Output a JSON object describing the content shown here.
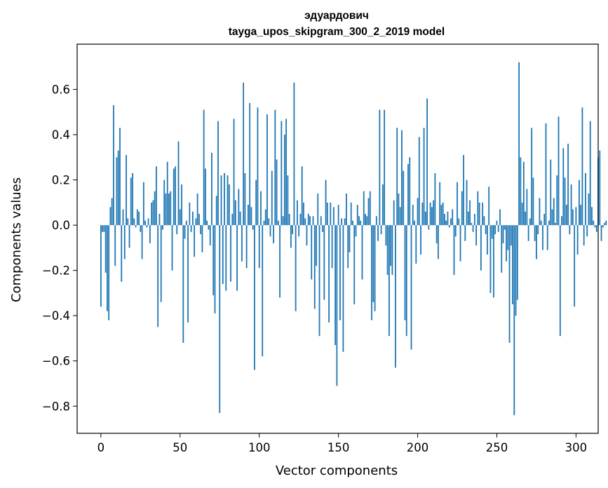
{
  "chart_data": {
    "type": "bar",
    "title_line1": "эдуардович",
    "title_line2": "tayga_upos_skipgram_300_2_2019 model",
    "xlabel": "Vector components",
    "ylabel": "Components values",
    "xlim": [
      -15,
      314
    ],
    "ylim": [
      -0.92,
      0.8
    ],
    "xticks": [
      0,
      50,
      100,
      150,
      200,
      250,
      300
    ],
    "xtick_labels": [
      "0",
      "50",
      "100",
      "150",
      "200",
      "250",
      "300"
    ],
    "yticks": [
      -0.8,
      -0.6,
      -0.4,
      -0.2,
      0.0,
      0.2,
      0.4,
      0.6
    ],
    "ytick_labels": [
      "−0.8",
      "−0.6",
      "−0.4",
      "−0.2",
      "0.0",
      "0.2",
      "0.4",
      "0.6"
    ],
    "bar_color": "#1f77b4",
    "series": [
      {
        "name": "эдуардович",
        "values": [
          -0.36,
          -0.03,
          -0.03,
          -0.21,
          -0.38,
          -0.42,
          0.08,
          0.12,
          0.53,
          -0.18,
          0.3,
          0.33,
          0.43,
          -0.25,
          0.07,
          -0.15,
          0.31,
          0.03,
          -0.1,
          0.21,
          0.23,
          0.03,
          -0.01,
          0.07,
          0.06,
          -0.03,
          -0.15,
          0.19,
          0.02,
          -0.01,
          0.03,
          -0.08,
          0.1,
          0.11,
          0.15,
          0.26,
          -0.45,
          0.05,
          -0.34,
          -0.02,
          0.2,
          0.14,
          0.28,
          0.14,
          0.15,
          -0.2,
          0.25,
          0.26,
          -0.04,
          0.37,
          0.07,
          0.18,
          -0.52,
          -0.06,
          0.02,
          -0.43,
          0.1,
          -0.03,
          0.06,
          -0.14,
          0.03,
          0.14,
          0.05,
          -0.04,
          -0.12,
          0.51,
          0.25,
          0.02,
          -0.02,
          -0.09,
          0.32,
          -0.31,
          -0.39,
          0.13,
          0.46,
          -0.83,
          0.22,
          -0.26,
          0.23,
          -0.29,
          0.22,
          0.18,
          -0.25,
          0.05,
          0.47,
          0.11,
          -0.29,
          0.16,
          0.06,
          -0.16,
          0.63,
          0.23,
          -0.19,
          0.09,
          0.54,
          0.08,
          -0.02,
          -0.64,
          0.2,
          0.52,
          -0.19,
          0.15,
          -0.58,
          0.02,
          0.07,
          0.49,
          0.03,
          -0.05,
          0.24,
          -0.08,
          0.51,
          0.29,
          0.02,
          -0.32,
          0.46,
          0.04,
          0.4,
          0.47,
          0.22,
          0.05,
          -0.1,
          -0.04,
          0.63,
          -0.38,
          0.11,
          -0.05,
          0.05,
          0.26,
          0.1,
          0.03,
          -0.09,
          0.05,
          0.04,
          -0.24,
          0.04,
          -0.37,
          -0.18,
          0.14,
          -0.49,
          0.04,
          -0.03,
          -0.33,
          0.2,
          0.1,
          -0.43,
          0.1,
          -0.19,
          0.08,
          -0.53,
          -0.71,
          0.09,
          -0.42,
          0.03,
          -0.56,
          0.03,
          0.14,
          -0.19,
          -0.12,
          0.1,
          0.02,
          -0.35,
          -0.05,
          0.09,
          0.04,
          0.02,
          -0.24,
          0.15,
          0.05,
          0.04,
          0.12,
          0.15,
          -0.42,
          -0.34,
          -0.38,
          0.04,
          -0.07,
          0.51,
          -0.04,
          0.18,
          0.51,
          -0.09,
          -0.22,
          -0.49,
          -0.18,
          -0.22,
          0.11,
          -0.63,
          0.43,
          0.14,
          0.08,
          0.42,
          0.24,
          -0.42,
          -0.49,
          0.27,
          0.3,
          -0.55,
          0.09,
          0.02,
          -0.17
        ]
      }
    ],
    "extra_values": [
      0.12,
      0.39,
      -0.13,
      0.1,
      0.43,
      0.06,
      0.56,
      -0.02,
      0.1,
      0.08,
      0.11,
      0.23,
      -0.08,
      -0.15,
      0.19,
      0.09,
      0.1,
      0.05,
      0.02,
      0.06,
      -0.01,
      0.03,
      0.07,
      -0.22,
      -0.05,
      0.19,
      0.03,
      -0.16,
      0.15,
      0.31,
      -0.07,
      0.2,
      0.06,
      0.11,
      0.01,
      -0.03,
      0.05,
      -0.09,
      0.15,
      0.1,
      -0.2,
      0.1,
      0.04,
      -0.04,
      -0.13,
      0.17,
      -0.3,
      -0.06,
      -0.32,
      -0.04,
      0.02,
      -0.03,
      0.07,
      -0.21,
      -0.08,
      -0.02,
      -0.16,
      -0.11,
      -0.52,
      -0.09,
      -0.35,
      -0.84,
      -0.4,
      -0.33,
      0.72,
      0.3,
      0.1,
      0.28,
      0.06,
      0.16,
      -0.07,
      0.03,
      0.43,
      0.21,
      -0.07,
      -0.15,
      -0.04,
      0.12,
      0.02,
      -0.11,
      0.05,
      0.45,
      -0.11,
      0.02,
      0.29,
      0.07,
      0.12,
      0.01,
      0.22,
      0.48,
      -0.49,
      0.04,
      0.34,
      0.21,
      0.09,
      0.36,
      -0.04,
      0.18,
      0.07,
      -0.36,
      0.08,
      -0.13,
      0.2,
      0.09,
      0.52,
      -0.09,
      0.23,
      -0.05,
      0.14,
      0.46,
      0.08,
      0.02,
      -0.01,
      -0.03,
      0.3,
      0.33,
      -0.07,
      -0.01,
      0.01,
      0.02
    ]
  }
}
